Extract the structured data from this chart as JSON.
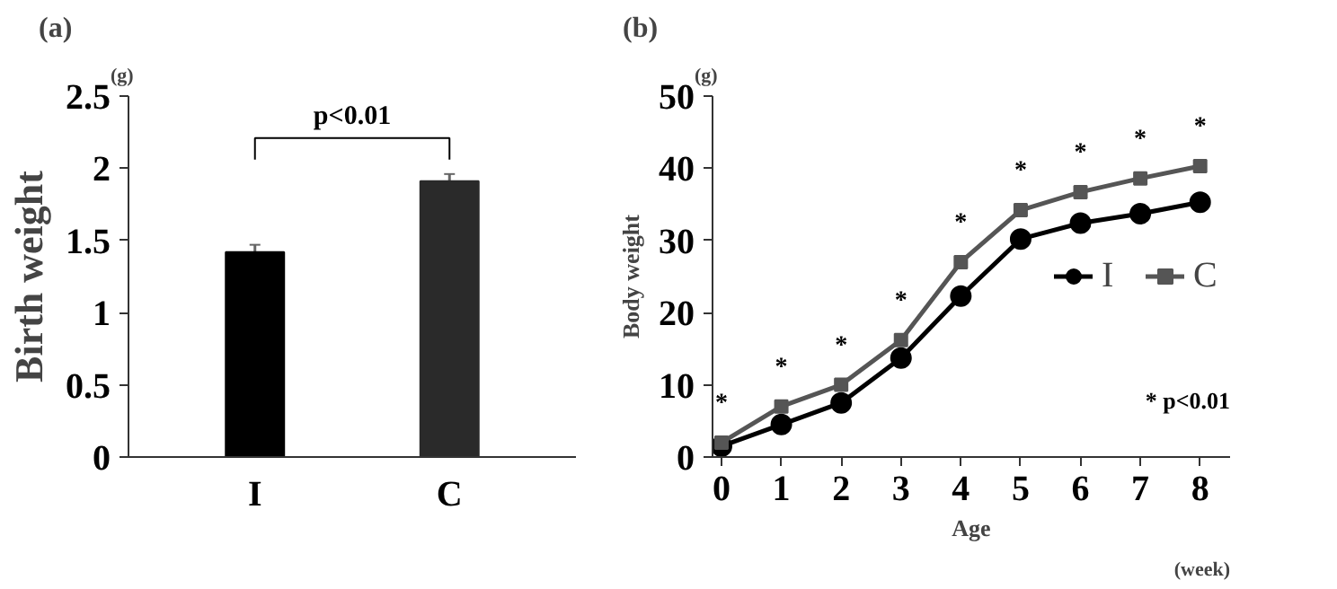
{
  "chart_data": [
    {
      "type": "bar",
      "title": "(a)",
      "ylabel": "Birth weight",
      "categories": [
        "I",
        "C"
      ],
      "values": [
        1.42,
        1.91
      ],
      "errors": [
        0.05,
        0.05
      ],
      "colors": [
        "#000000",
        "#2a2a2a"
      ],
      "ylim": [
        0,
        2.5
      ],
      "yticks": [
        0,
        0.5,
        1,
        1.5,
        2,
        2.5
      ],
      "grid": false,
      "legend": false,
      "annotations": [
        "(g)",
        "p<0.01"
      ]
    },
    {
      "type": "line",
      "title": "(b)",
      "xlabel": "Age",
      "ylabel": "Body weight",
      "x": [
        0,
        1,
        2,
        3,
        4,
        5,
        6,
        7,
        8
      ],
      "xlim": [
        -0.15,
        8.5
      ],
      "xticks": [
        0,
        1,
        2,
        3,
        4,
        5,
        6,
        7,
        8
      ],
      "ylim": [
        0,
        50
      ],
      "yticks": [
        0,
        10,
        20,
        30,
        40,
        50
      ],
      "grid": false,
      "legend": "right",
      "line_style": "solid",
      "series": [
        {
          "name": "I",
          "color": "#000000",
          "marker": "circle",
          "values": [
            1.5,
            4.5,
            7.5,
            13.7,
            22.3,
            30.2,
            32.4,
            33.7,
            35.3
          ]
        },
        {
          "name": "C",
          "color": "#555555",
          "marker": "square",
          "values": [
            2,
            7,
            10,
            16.2,
            27,
            34.2,
            36.7,
            38.6,
            40.3
          ]
        }
      ],
      "annotations": [
        "(g)",
        "(week)",
        "* p<0.01",
        "*",
        "*",
        "*",
        "*",
        "*",
        "*",
        "*",
        "*",
        "*"
      ]
    }
  ]
}
